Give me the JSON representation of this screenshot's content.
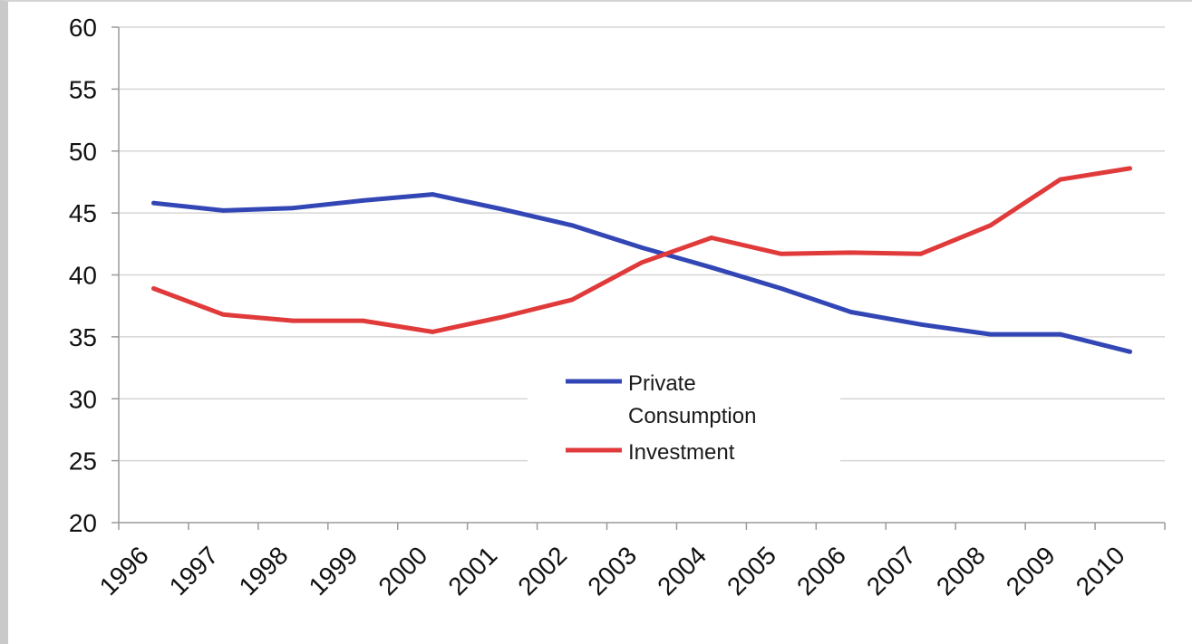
{
  "chart_data": {
    "type": "line",
    "title": "",
    "xlabel": "",
    "ylabel": "",
    "categories": [
      "1996",
      "1997",
      "1998",
      "1999",
      "2000",
      "2001",
      "2002",
      "2003",
      "2004",
      "2005",
      "2006",
      "2007",
      "2008",
      "2009",
      "2010"
    ],
    "ylim": [
      20,
      60
    ],
    "yticks": [
      20,
      25,
      30,
      35,
      40,
      45,
      50,
      55,
      60
    ],
    "grid": true,
    "legend_position": "center",
    "series": [
      {
        "name_lines": [
          "Private",
          "Consumption"
        ],
        "color": "#3346b5",
        "values": [
          45.8,
          45.2,
          45.4,
          46.0,
          46.5,
          45.3,
          44.0,
          42.2,
          40.6,
          38.9,
          37.0,
          36.0,
          35.2,
          35.2,
          33.8
        ]
      },
      {
        "name_lines": [
          "Investment"
        ],
        "color": "#e03a3a",
        "values": [
          38.9,
          36.8,
          36.3,
          36.3,
          35.4,
          36.6,
          38.0,
          41.0,
          43.0,
          41.7,
          41.8,
          41.7,
          44.0,
          47.7,
          48.6
        ]
      }
    ]
  }
}
